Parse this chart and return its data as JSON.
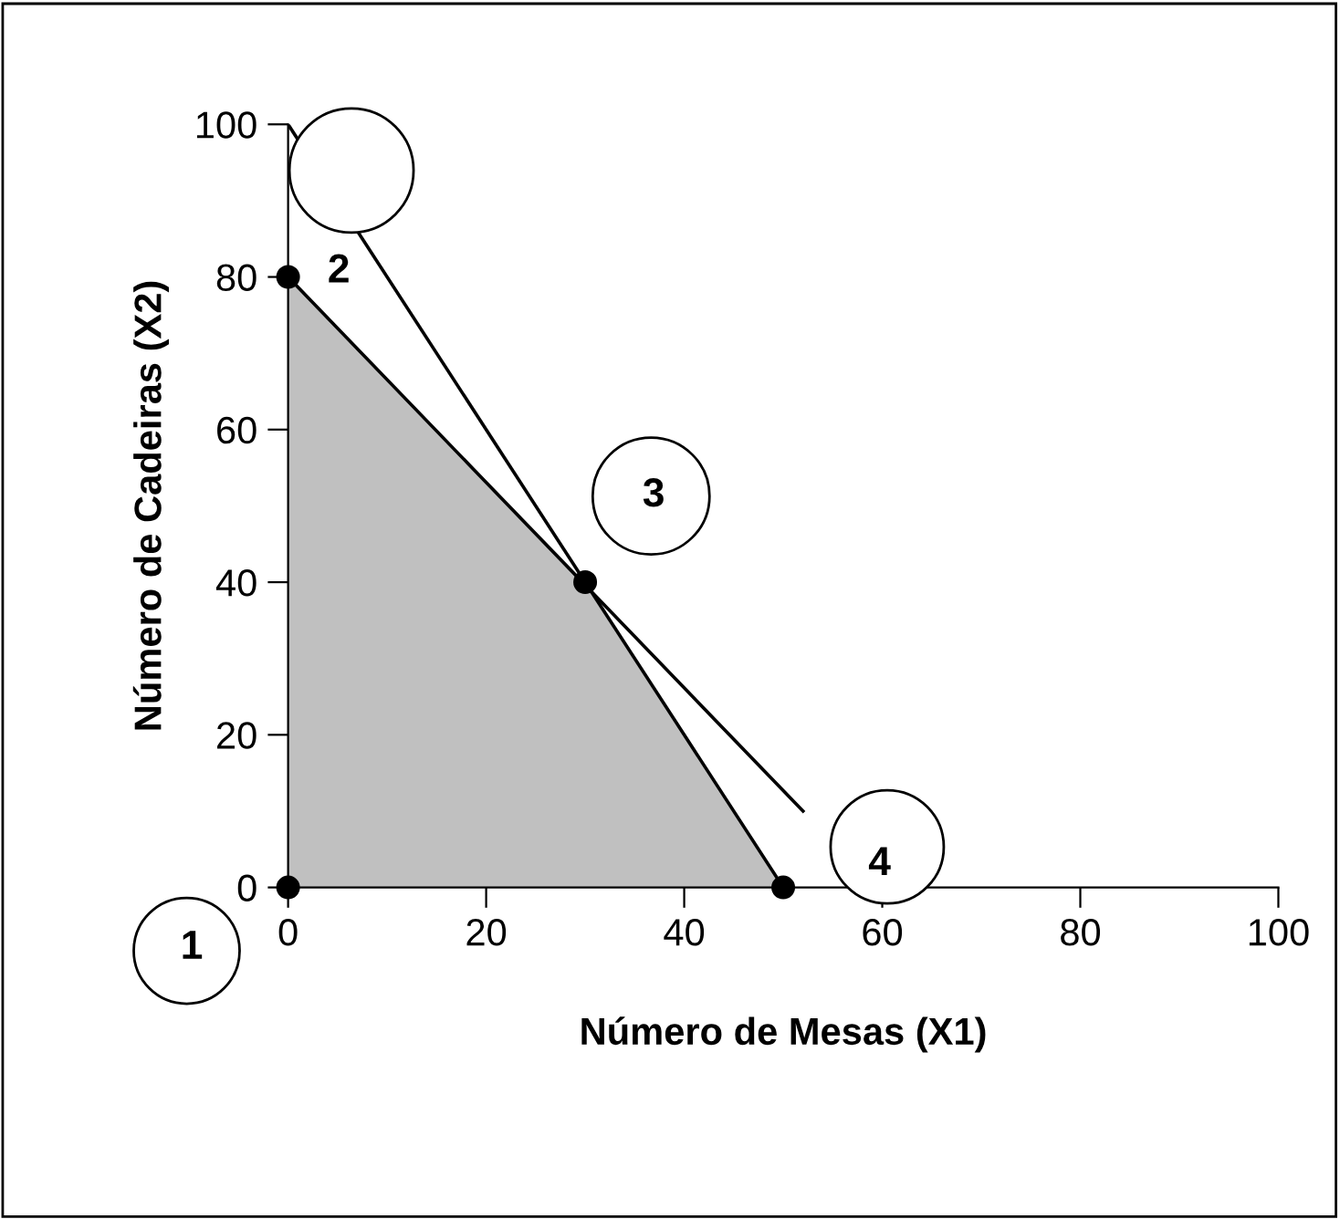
{
  "chart_data": {
    "type": "line",
    "xlabel": "Número de Mesas (X1)",
    "ylabel": "Número de Cadeiras (X2)",
    "xlim": [
      0,
      100
    ],
    "ylim": [
      0,
      100
    ],
    "xticks": [
      0,
      20,
      40,
      60,
      80,
      100
    ],
    "yticks": [
      0,
      20,
      40,
      60,
      80,
      100
    ],
    "grid": false,
    "legend": false,
    "series": [
      {
        "type": "area",
        "color": "#c0c0c0",
        "x": [
          0,
          0,
          30,
          50
        ],
        "values": [
          0,
          80,
          40,
          0
        ]
      },
      {
        "color": "#000000",
        "x": [
          0,
          50
        ],
        "values": [
          100,
          0
        ]
      },
      {
        "color": "#000000",
        "x": [
          0,
          52
        ],
        "values": [
          80,
          10
        ]
      },
      {
        "type": "scatter",
        "color": "#000000",
        "x": [
          0,
          0,
          30,
          50
        ],
        "values": [
          0,
          80,
          40,
          0
        ]
      }
    ],
    "annotations": [
      {
        "text": "1",
        "x": 0,
        "y": 0
      },
      {
        "text": "2",
        "x": 0,
        "y": 80
      },
      {
        "text": "3",
        "x": 30,
        "y": 40
      },
      {
        "text": "4",
        "x": 50,
        "y": 0
      }
    ]
  }
}
